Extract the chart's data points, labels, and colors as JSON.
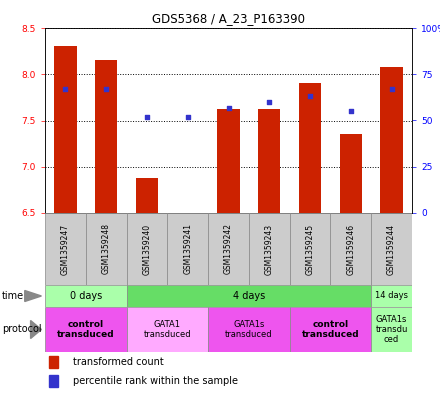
{
  "title": "GDS5368 / A_23_P163390",
  "samples": [
    "GSM1359247",
    "GSM1359248",
    "GSM1359240",
    "GSM1359241",
    "GSM1359242",
    "GSM1359243",
    "GSM1359245",
    "GSM1359246",
    "GSM1359244"
  ],
  "transformed_counts": [
    8.3,
    8.15,
    6.88,
    6.505,
    7.62,
    7.62,
    7.9,
    7.35,
    8.08
  ],
  "percentile_ranks": [
    67,
    67,
    52,
    52,
    57,
    60,
    63,
    55,
    67
  ],
  "bar_bottom": 6.5,
  "ylim_left": [
    6.5,
    8.5
  ],
  "ylim_right": [
    0,
    100
  ],
  "yticks_left": [
    6.5,
    7.0,
    7.5,
    8.0,
    8.5
  ],
  "yticks_right": [
    0,
    25,
    50,
    75,
    100
  ],
  "ytick_labels_right": [
    "0",
    "25",
    "50",
    "75",
    "100%"
  ],
  "bar_color": "#cc2200",
  "dot_color": "#3333cc",
  "bar_width": 0.55,
  "time_groups": [
    {
      "label": "0 days",
      "start": 0,
      "end": 2,
      "color": "#aaffaa"
    },
    {
      "label": "4 days",
      "start": 2,
      "end": 8,
      "color": "#66dd66"
    },
    {
      "label": "14 days",
      "start": 8,
      "end": 9,
      "color": "#aaffaa"
    }
  ],
  "protocol_groups": [
    {
      "label": "control\ntransduced",
      "start": 0,
      "end": 2,
      "color": "#ee55ee",
      "bold": true
    },
    {
      "label": "GATA1\ntransduced",
      "start": 2,
      "end": 4,
      "color": "#ffaaff",
      "bold": false
    },
    {
      "label": "GATA1s\ntransduced",
      "start": 4,
      "end": 6,
      "color": "#ee55ee",
      "bold": false
    },
    {
      "label": "control\ntransduced",
      "start": 6,
      "end": 8,
      "color": "#ee55ee",
      "bold": true
    },
    {
      "label": "GATA1s\ntransdu\nced",
      "start": 8,
      "end": 9,
      "color": "#aaffaa",
      "bold": false
    }
  ]
}
